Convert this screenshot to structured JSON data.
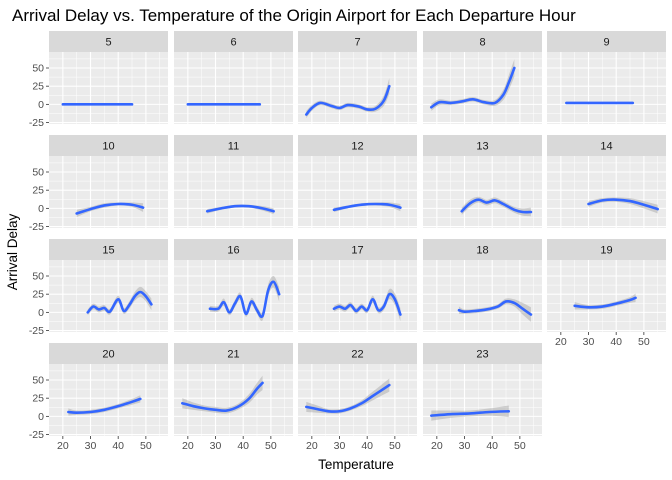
{
  "chart_data": {
    "type": "line",
    "title": "Arrival Delay vs. Temperature of the Origin Airport for Each Departure Hour",
    "xlabel": "Temperature",
    "ylabel": "Arrival Delay",
    "xlim": [
      15,
      58
    ],
    "ylim": [
      -27,
      72
    ],
    "x_ticks": [
      20,
      30,
      40,
      50
    ],
    "y_ticks": [
      -25,
      0,
      25,
      50
    ],
    "grid": true,
    "facet_by": "departure hour",
    "line_color": "#3366FF",
    "band_color": "#999999",
    "panel_bg": "#EBEBEB",
    "strip_bg": "#D9D9D9",
    "facets": [
      {
        "label": "5",
        "x": [
          20,
          25,
          30,
          35,
          40,
          45
        ],
        "y": [
          0,
          0,
          0,
          0,
          0,
          0
        ],
        "lower": [
          -1,
          -1,
          -1,
          -1,
          -1,
          -1
        ],
        "upper": [
          1,
          1,
          1,
          1,
          1,
          1
        ]
      },
      {
        "label": "6",
        "x": [
          20,
          25,
          30,
          35,
          40,
          46
        ],
        "y": [
          0,
          0,
          0,
          0,
          0,
          0
        ],
        "lower": [
          -1,
          -1,
          -1,
          -1,
          -1,
          -1
        ],
        "upper": [
          1,
          1,
          1,
          1,
          1,
          1
        ]
      },
      {
        "label": "7",
        "x": [
          18,
          20,
          23,
          27,
          30,
          33,
          37,
          40,
          43,
          46,
          48
        ],
        "y": [
          -14,
          -5,
          2,
          -2,
          -5,
          -1,
          -3,
          -7,
          -6,
          5,
          25
        ],
        "lower": [
          -19,
          -9,
          -1,
          -5,
          -8,
          -4,
          -6,
          -10,
          -10,
          -2,
          14
        ],
        "upper": [
          -9,
          -1,
          5,
          1,
          -2,
          2,
          0,
          -4,
          -2,
          12,
          36
        ]
      },
      {
        "label": "8",
        "x": [
          18,
          21,
          25,
          29,
          33,
          37,
          41,
          44,
          46,
          48
        ],
        "y": [
          -4,
          3,
          2,
          4,
          7,
          3,
          2,
          13,
          30,
          50
        ],
        "lower": [
          -9,
          -1,
          -1,
          1,
          4,
          0,
          -2,
          6,
          20,
          38
        ],
        "upper": [
          1,
          7,
          5,
          7,
          10,
          6,
          6,
          20,
          40,
          62
        ]
      },
      {
        "label": "9",
        "x": [
          22,
          30,
          38,
          46
        ],
        "y": [
          2,
          2,
          2,
          2
        ],
        "lower": [
          1,
          1,
          1,
          1
        ],
        "upper": [
          3,
          3,
          3,
          3
        ]
      },
      {
        "label": "10",
        "x": [
          25,
          30,
          35,
          40,
          45,
          49
        ],
        "y": [
          -7,
          -1,
          4,
          6,
          5,
          1
        ],
        "lower": [
          -12,
          -4,
          1,
          4,
          2,
          -5
        ],
        "upper": [
          -2,
          2,
          7,
          8,
          8,
          7
        ]
      },
      {
        "label": "11",
        "x": [
          27,
          32,
          37,
          42,
          47,
          51
        ],
        "y": [
          -4,
          0,
          3,
          3,
          0,
          -4
        ],
        "lower": [
          -7,
          -2,
          1,
          1,
          -3,
          -8
        ],
        "upper": [
          -1,
          2,
          5,
          5,
          3,
          0
        ]
      },
      {
        "label": "12",
        "x": [
          28,
          33,
          38,
          43,
          48,
          52
        ],
        "y": [
          -2,
          2,
          5,
          6,
          5,
          1
        ],
        "lower": [
          -5,
          0,
          3,
          4,
          2,
          -4
        ],
        "upper": [
          1,
          4,
          7,
          8,
          8,
          6
        ]
      },
      {
        "label": "13",
        "x": [
          29,
          32,
          35,
          38,
          41,
          44,
          48,
          51,
          54
        ],
        "y": [
          -4,
          7,
          12,
          8,
          11,
          6,
          -2,
          -5,
          -5
        ],
        "lower": [
          -9,
          2,
          8,
          4,
          7,
          2,
          -6,
          -10,
          -11
        ],
        "upper": [
          1,
          12,
          16,
          12,
          15,
          10,
          2,
          0,
          1
        ]
      },
      {
        "label": "14",
        "x": [
          30,
          35,
          40,
          45,
          50,
          55
        ],
        "y": [
          6,
          11,
          12,
          10,
          5,
          -1
        ],
        "lower": [
          2,
          8,
          9,
          6,
          0,
          -7
        ],
        "upper": [
          10,
          14,
          15,
          14,
          10,
          5
        ]
      },
      {
        "label": "15",
        "x": [
          29,
          31,
          33,
          35,
          37,
          40,
          42,
          44,
          46,
          48,
          50,
          52
        ],
        "y": [
          0,
          8,
          4,
          6,
          1,
          18,
          2,
          10,
          22,
          28,
          22,
          11
        ],
        "lower": [
          -4,
          4,
          0,
          2,
          -3,
          13,
          -2,
          5,
          16,
          21,
          15,
          3
        ],
        "upper": [
          4,
          12,
          8,
          10,
          5,
          23,
          6,
          15,
          28,
          35,
          29,
          19
        ]
      },
      {
        "label": "16",
        "x": [
          28,
          31,
          33,
          35,
          37,
          39,
          41,
          43,
          45,
          47,
          49,
          51,
          53
        ],
        "y": [
          5,
          5,
          14,
          0,
          12,
          22,
          -2,
          15,
          3,
          -5,
          30,
          42,
          25
        ],
        "lower": [
          1,
          1,
          9,
          -4,
          7,
          17,
          -6,
          10,
          -2,
          -11,
          22,
          34,
          15
        ],
        "upper": [
          9,
          9,
          19,
          4,
          17,
          27,
          2,
          20,
          8,
          1,
          38,
          50,
          35
        ]
      },
      {
        "label": "17",
        "x": [
          28,
          30,
          32,
          34,
          36,
          38,
          40,
          42,
          44,
          46,
          48,
          50,
          52
        ],
        "y": [
          5,
          8,
          5,
          10,
          2,
          8,
          3,
          18,
          3,
          8,
          25,
          18,
          -3
        ],
        "lower": [
          1,
          4,
          1,
          6,
          -2,
          4,
          -1,
          13,
          -1,
          3,
          18,
          10,
          -12
        ],
        "upper": [
          9,
          12,
          9,
          14,
          6,
          12,
          7,
          23,
          7,
          13,
          32,
          26,
          6
        ]
      },
      {
        "label": "18",
        "x": [
          28,
          30,
          34,
          38,
          42,
          45,
          48,
          51,
          54
        ],
        "y": [
          3,
          1,
          2,
          4,
          8,
          15,
          13,
          5,
          -3
        ],
        "lower": [
          -2,
          -2,
          -1,
          1,
          5,
          11,
          8,
          -3,
          -13
        ],
        "upper": [
          8,
          4,
          5,
          7,
          11,
          19,
          18,
          13,
          7
        ]
      },
      {
        "label": "19",
        "x": [
          25,
          30,
          35,
          40,
          45,
          47
        ],
        "y": [
          9,
          7,
          8,
          12,
          17,
          20
        ],
        "lower": [
          4,
          4,
          5,
          9,
          13,
          14
        ],
        "upper": [
          14,
          10,
          11,
          15,
          21,
          26
        ]
      },
      {
        "label": "20",
        "x": [
          22,
          25,
          30,
          35,
          40,
          45,
          48
        ],
        "y": [
          6,
          5,
          6,
          9,
          14,
          20,
          24
        ],
        "lower": [
          1,
          2,
          3,
          6,
          11,
          16,
          19
        ],
        "upper": [
          11,
          8,
          9,
          12,
          17,
          24,
          29
        ]
      },
      {
        "label": "21",
        "x": [
          18,
          22,
          26,
          30,
          34,
          38,
          42,
          45,
          47
        ],
        "y": [
          18,
          14,
          11,
          9,
          8,
          13,
          24,
          38,
          46
        ],
        "lower": [
          11,
          9,
          7,
          5,
          4,
          9,
          18,
          30,
          36
        ],
        "upper": [
          25,
          19,
          15,
          13,
          12,
          17,
          30,
          46,
          56
        ]
      },
      {
        "label": "22",
        "x": [
          18,
          22,
          26,
          30,
          34,
          38,
          42,
          46,
          48
        ],
        "y": [
          13,
          10,
          7,
          7,
          11,
          18,
          28,
          38,
          43
        ],
        "lower": [
          6,
          5,
          4,
          4,
          8,
          14,
          22,
          30,
          34
        ],
        "upper": [
          20,
          15,
          10,
          10,
          14,
          22,
          34,
          46,
          52
        ]
      },
      {
        "label": "23",
        "x": [
          18,
          25,
          32,
          39,
          46
        ],
        "y": [
          1,
          3,
          4,
          6,
          7
        ],
        "lower": [
          -6,
          -2,
          0,
          1,
          -1
        ],
        "upper": [
          8,
          8,
          8,
          11,
          15
        ]
      }
    ]
  }
}
